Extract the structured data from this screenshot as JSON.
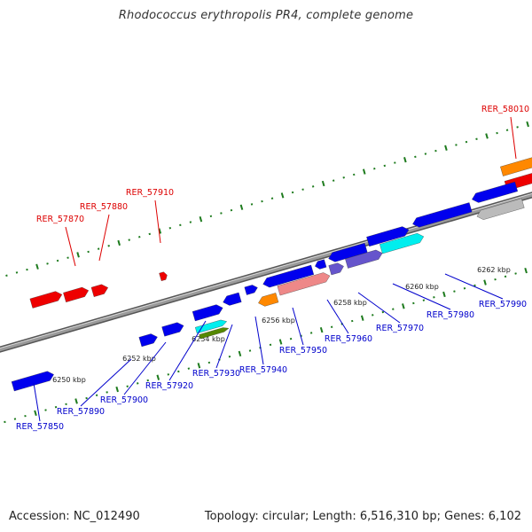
{
  "title": "Rhodococcus erythropolis PR4, complete genome",
  "footer": {
    "accession": "Accession: NC_012490",
    "topology": "Topology: circular; Length: 6,516,310 bp; Genes: 6,102"
  },
  "colors": {
    "backbone": "#888888",
    "tick_major": "#1e7b1e",
    "tick_minor": "#1e7b1e",
    "label_top": "#dd0000",
    "label_bottom": "#0000cc",
    "gene_blue": "#0000ee",
    "gene_red": "#ee0000",
    "gene_orange": "#ff8800",
    "gene_cyan": "#00eeee",
    "gene_pink": "#ee8888",
    "gene_purple": "#6655cc",
    "gene_olive": "#558800",
    "gene_grey": "#bbbbbb"
  },
  "kbp_labels": [
    "6250 kbp",
    "6252 kbp",
    "6254 kbp",
    "6256 kbp",
    "6258 kbp",
    "6260 kbp",
    "6262 kbp"
  ],
  "gene_labels_top": [
    "RER_57870",
    "RER_57880",
    "RER_57910",
    "RER_58010"
  ],
  "gene_labels_bottom": [
    "RER_57850",
    "RER_57890",
    "RER_57900",
    "RER_57920",
    "RER_57930",
    "RER_57940",
    "RER_57950",
    "RER_57960",
    "RER_57970",
    "RER_57980",
    "RER_57990"
  ]
}
